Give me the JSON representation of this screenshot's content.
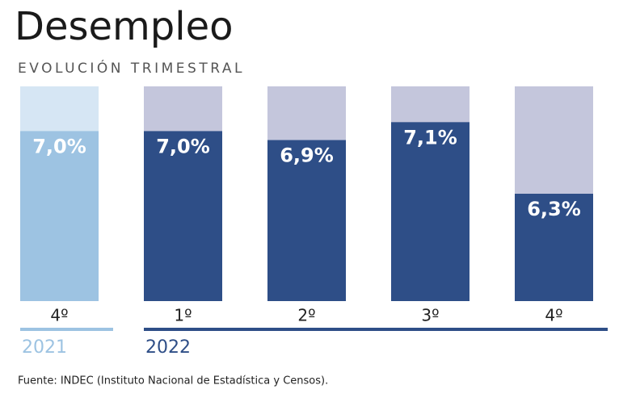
{
  "chart_data": {
    "type": "bar",
    "title": "Desempleo",
    "subtitle": "EVOLUCIÓN TRIMESTRAL",
    "categories": [
      "4º",
      "1º",
      "2º",
      "3º",
      "4º"
    ],
    "values": [
      7.0,
      7.0,
      6.9,
      7.1,
      6.3
    ],
    "value_labels": [
      "7,0%",
      "7,0%",
      "6,9%",
      "7,1%",
      "6,3%"
    ],
    "bar_colors": [
      "#9dc3e2",
      "#2e4e87",
      "#2e4e87",
      "#2e4e87",
      "#2e4e87"
    ],
    "track_colors": [
      "#d6e6f4",
      "#c4c6dc",
      "#c4c6dc",
      "#c4c6dc",
      "#c4c6dc"
    ],
    "groups": [
      {
        "name": "2021",
        "color": "#9dc3e2",
        "size": 1
      },
      {
        "name": "2022",
        "color": "#2e4e87",
        "size": 4
      }
    ],
    "ylim": [
      5.1,
      7.5
    ],
    "source": "Fuente: INDEC (Instituto Nacional de Estadística y Censos)."
  }
}
